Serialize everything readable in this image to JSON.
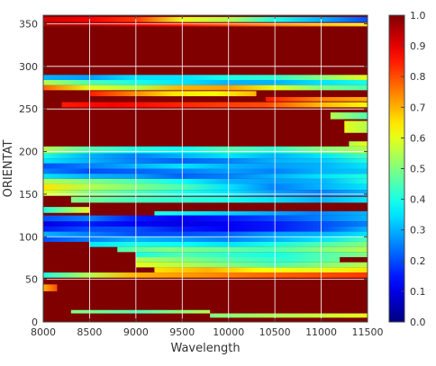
{
  "chart_data": {
    "type": "heatmap",
    "title": "",
    "xlabel": "Wavelength",
    "ylabel": "ORIENTAT",
    "xlim": [
      8000,
      11500
    ],
    "ylim": [
      0,
      360
    ],
    "xticks": [
      8000,
      8500,
      9000,
      9500,
      10000,
      10500,
      11000,
      11500
    ],
    "yticks": [
      0,
      50,
      100,
      150,
      200,
      250,
      300,
      350
    ],
    "xtick_labels": [
      "8000",
      "8500",
      "9000",
      "9500",
      "10000",
      "10500",
      "11000",
      "11500"
    ],
    "ytick_labels": [
      "0",
      "50",
      "100",
      "150",
      "200",
      "250",
      "300",
      "350"
    ],
    "grid": true,
    "colormap": "jet",
    "colorbar": {
      "range": [
        0.0,
        1.0
      ],
      "ticks": [
        0.0,
        0.1,
        0.2,
        0.3,
        0.4,
        0.5,
        0.6,
        0.7,
        0.8,
        0.9,
        1.0
      ],
      "tick_labels": [
        "0.0",
        "0.1",
        "0.2",
        "0.3",
        "0.4",
        "0.5",
        "0.6",
        "0.7",
        "0.8",
        "0.9",
        "1.0"
      ]
    },
    "background_value": 1.0,
    "bands": [
      {
        "y": [
          352,
          358
        ],
        "x": [
          8000,
          11500
        ],
        "v": [
          0.92,
          0.88,
          0.82,
          0.6,
          0.55,
          0.4,
          0.3,
          0.2
        ]
      },
      {
        "y": [
          347,
          351
        ],
        "x": [
          8000,
          11500
        ],
        "v": [
          0.95,
          0.95,
          0.9,
          0.85,
          0.8,
          0.75,
          0.7,
          0.65
        ]
      },
      {
        "y": [
          284,
          290
        ],
        "x": [
          8000,
          11500
        ],
        "v": [
          0.3,
          0.28,
          0.35,
          0.35,
          0.4,
          0.42,
          0.5,
          0.6
        ]
      },
      {
        "y": [
          278,
          284
        ],
        "x": [
          8000,
          11500
        ],
        "v": [
          0.55,
          0.45,
          0.4,
          0.35,
          0.3,
          0.3,
          0.35,
          0.4
        ]
      },
      {
        "y": [
          272,
          278
        ],
        "x": [
          8000,
          11500
        ],
        "v": [
          0.78,
          0.6,
          0.55,
          0.7,
          0.72,
          0.6,
          0.5,
          0.45
        ]
      },
      {
        "y": [
          265,
          271
        ],
        "x": [
          8500,
          10300
        ],
        "v": [
          0.85,
          0.75,
          0.65,
          0.62,
          0.7
        ]
      },
      {
        "y": [
          259,
          264
        ],
        "x": [
          10400,
          11500
        ],
        "v": [
          0.85,
          0.75,
          0.7
        ]
      },
      {
        "y": [
          252,
          258
        ],
        "x": [
          8200,
          11500
        ],
        "v": [
          0.85,
          0.88,
          0.85,
          0.82,
          0.8,
          0.7,
          0.62
        ]
      },
      {
        "y": [
          238,
          246
        ],
        "x": [
          11100,
          11500
        ],
        "v": [
          0.55,
          0.45
        ]
      },
      {
        "y": [
          222,
          236
        ],
        "x": [
          11250,
          11500
        ],
        "v": [
          0.6,
          0.55
        ]
      },
      {
        "y": [
          206,
          212
        ],
        "x": [
          11300,
          11500
        ],
        "v": [
          0.55,
          0.6
        ]
      },
      {
        "y": [
          198,
          206
        ],
        "x": [
          8000,
          11500
        ],
        "v": [
          0.55,
          0.45,
          0.4,
          0.38,
          0.45,
          0.42,
          0.5,
          0.55
        ]
      },
      {
        "y": [
          192,
          198
        ],
        "x": [
          8000,
          11500
        ],
        "v": [
          0.4,
          0.3,
          0.25,
          0.3,
          0.35,
          0.3,
          0.35,
          0.45
        ]
      },
      {
        "y": [
          186,
          192
        ],
        "x": [
          8000,
          11500
        ],
        "v": [
          0.35,
          0.3,
          0.25,
          0.22,
          0.25,
          0.3,
          0.32,
          0.4
        ]
      },
      {
        "y": [
          180,
          186
        ],
        "x": [
          8000,
          11500
        ],
        "v": [
          0.2,
          0.25,
          0.3,
          0.35,
          0.3,
          0.28,
          0.3,
          0.35
        ]
      },
      {
        "y": [
          174,
          180
        ],
        "x": [
          8000,
          11500
        ],
        "v": [
          0.25,
          0.2,
          0.22,
          0.25,
          0.28,
          0.25,
          0.3,
          0.32
        ]
      },
      {
        "y": [
          168,
          174
        ],
        "x": [
          8000,
          11500
        ],
        "v": [
          0.35,
          0.3,
          0.28,
          0.22,
          0.25,
          0.3,
          0.35,
          0.4
        ]
      },
      {
        "y": [
          162,
          168
        ],
        "x": [
          8000,
          11500
        ],
        "v": [
          0.55,
          0.5,
          0.45,
          0.38,
          0.3,
          0.28,
          0.3,
          0.4
        ]
      },
      {
        "y": [
          155,
          162
        ],
        "x": [
          8000,
          11500
        ],
        "v": [
          0.65,
          0.55,
          0.5,
          0.45,
          0.35,
          0.25,
          0.3,
          0.35
        ]
      },
      {
        "y": [
          148,
          155
        ],
        "x": [
          8000,
          11500
        ],
        "v": [
          0.6,
          0.5,
          0.45,
          0.4,
          0.35,
          0.28,
          0.25,
          0.3
        ]
      },
      {
        "y": [
          140,
          147
        ],
        "x": [
          8300,
          11500
        ],
        "v": [
          0.5,
          0.45,
          0.42,
          0.4,
          0.35,
          0.3,
          0.35
        ]
      },
      {
        "y": [
          128,
          135
        ],
        "x": [
          8000,
          8500
        ],
        "v": [
          0.4,
          0.6
        ]
      },
      {
        "y": [
          125,
          130
        ],
        "x": [
          9200,
          11500
        ],
        "v": [
          0.4,
          0.35,
          0.3,
          0.25,
          0.3
        ]
      },
      {
        "y": [
          118,
          125
        ],
        "x": [
          8000,
          11500
        ],
        "v": [
          0.2,
          0.25,
          0.15,
          0.12,
          0.15,
          0.2,
          0.25,
          0.3
        ]
      },
      {
        "y": [
          112,
          118
        ],
        "x": [
          8000,
          11500
        ],
        "v": [
          0.1,
          0.15,
          0.12,
          0.1,
          0.12,
          0.15,
          0.2,
          0.25
        ]
      },
      {
        "y": [
          106,
          112
        ],
        "x": [
          8000,
          11500
        ],
        "v": [
          0.15,
          0.2,
          0.2,
          0.15,
          0.12,
          0.15,
          0.2,
          0.3
        ]
      },
      {
        "y": [
          100,
          106
        ],
        "x": [
          8000,
          11500
        ],
        "v": [
          0.3,
          0.25,
          0.2,
          0.2,
          0.22,
          0.28,
          0.3,
          0.35
        ]
      },
      {
        "y": [
          94,
          100
        ],
        "x": [
          8000,
          11500
        ],
        "v": [
          0.2,
          0.25,
          0.3,
          0.28,
          0.25,
          0.3,
          0.35,
          0.45
        ]
      },
      {
        "y": [
          88,
          94
        ],
        "x": [
          8500,
          11500
        ],
        "v": [
          0.35,
          0.4,
          0.38,
          0.35,
          0.4,
          0.45,
          0.5
        ]
      },
      {
        "y": [
          82,
          88
        ],
        "x": [
          8800,
          11500
        ],
        "v": [
          0.45,
          0.5,
          0.48,
          0.45,
          0.5,
          0.55
        ]
      },
      {
        "y": [
          76,
          82
        ],
        "x": [
          9000,
          11500
        ],
        "v": [
          0.4,
          0.45,
          0.42,
          0.4,
          0.45,
          0.5
        ]
      },
      {
        "y": [
          70,
          76
        ],
        "x": [
          9000,
          11200
        ],
        "v": [
          0.55,
          0.5,
          0.45,
          0.42,
          0.48
        ]
      },
      {
        "y": [
          64,
          70
        ],
        "x": [
          9000,
          11500
        ],
        "v": [
          0.6,
          0.55,
          0.5,
          0.45,
          0.5,
          0.55
        ]
      },
      {
        "y": [
          58,
          64
        ],
        "x": [
          9200,
          11500
        ],
        "v": [
          0.65,
          0.7,
          0.62,
          0.6,
          0.65
        ]
      },
      {
        "y": [
          52,
          58
        ],
        "x": [
          8000,
          11500
        ],
        "v": [
          0.4,
          0.55,
          0.7,
          0.72,
          0.75,
          0.78,
          0.8,
          0.82
        ]
      },
      {
        "y": [
          36,
          44
        ],
        "x": [
          8000,
          8150
        ],
        "v": [
          0.7,
          0.8
        ]
      },
      {
        "y": [
          10,
          14
        ],
        "x": [
          8300,
          9800
        ],
        "v": [
          0.5,
          0.45,
          0.55
        ]
      },
      {
        "y": [
          5,
          10
        ],
        "x": [
          9800,
          11500
        ],
        "v": [
          0.5,
          0.55,
          0.6
        ]
      }
    ]
  }
}
